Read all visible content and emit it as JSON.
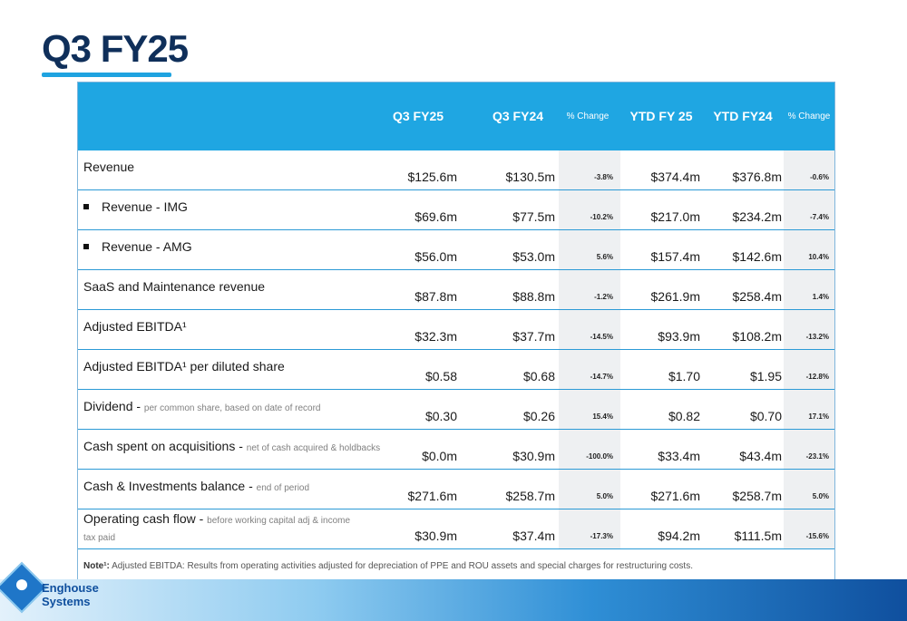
{
  "title": "Q3 FY25",
  "headers": {
    "q3fy25": "Q3 FY25",
    "q3fy24": "Q3 FY24",
    "pct1": "% Change",
    "ytd25": "YTD FY 25",
    "ytd24": "YTD FY24",
    "pct2": "% Change"
  },
  "rows": [
    {
      "label": "Revenue",
      "sub": "",
      "a": "$125.6m",
      "b": "$130.5m",
      "c": "-3.8%",
      "d": "$374.4m",
      "e": "$376.8m",
      "f": "-0.6%"
    },
    {
      "label": "Revenue - IMG",
      "sub": "",
      "a": "$69.6m",
      "b": "$77.5m",
      "c": "-10.2%",
      "d": "$217.0m",
      "e": "$234.2m",
      "f": "-7.4%"
    },
    {
      "label": "Revenue - AMG",
      "sub": "",
      "a": "$56.0m",
      "b": "$53.0m",
      "c": "5.6%",
      "d": "$157.4m",
      "e": "$142.6m",
      "f": "10.4%"
    },
    {
      "label": "SaaS and Maintenance revenue",
      "sub": "",
      "a": "$87.8m",
      "b": "$88.8m",
      "c": "-1.2%",
      "d": "$261.9m",
      "e": "$258.4m",
      "f": "1.4%"
    },
    {
      "label": "Adjusted EBITDA¹",
      "sub": "",
      "a": "$32.3m",
      "b": "$37.7m",
      "c": "-14.5%",
      "d": "$93.9m",
      "e": "$108.2m",
      "f": "-13.2%"
    },
    {
      "label": "Adjusted EBITDA¹ per diluted share",
      "sub": "",
      "a": "$0.58",
      "b": "$0.68",
      "c": "-14.7%",
      "d": "$1.70",
      "e": "$1.95",
      "f": "-12.8%"
    },
    {
      "label": "Dividend - ",
      "sub": "per common share, based on date of record",
      "a": "$0.30",
      "b": "$0.26",
      "c": "15.4%",
      "d": "$0.82",
      "e": "$0.70",
      "f": "17.1%"
    },
    {
      "label": "Cash spent on acquisitions - ",
      "sub": "net of cash acquired & holdbacks",
      "a": "$0.0m",
      "b": "$30.9m",
      "c": "-100.0%",
      "d": "$33.4m",
      "e": "$43.4m",
      "f": "-23.1%"
    },
    {
      "label": "Cash & Investments balance - ",
      "sub": "end of period",
      "a": "$271.6m",
      "b": "$258.7m",
      "c": "5.0%",
      "d": "$271.6m",
      "e": "$258.7m",
      "f": "5.0%"
    },
    {
      "label": "Operating cash flow - ",
      "sub": "before working capital adj & income tax paid",
      "a": "$30.9m",
      "b": "$37.4m",
      "c": "-17.3%",
      "d": "$94.2m",
      "e": "$111.5m",
      "f": "-15.6%"
    }
  ],
  "note_label": "Note¹:",
  "note_text": " Adjusted EBITDA: Results from operating activities adjusted for depreciation of PPE and ROU assets and special charges for restructuring costs.",
  "logo": {
    "line1": "Enghouse",
    "line2": "Systems"
  }
}
